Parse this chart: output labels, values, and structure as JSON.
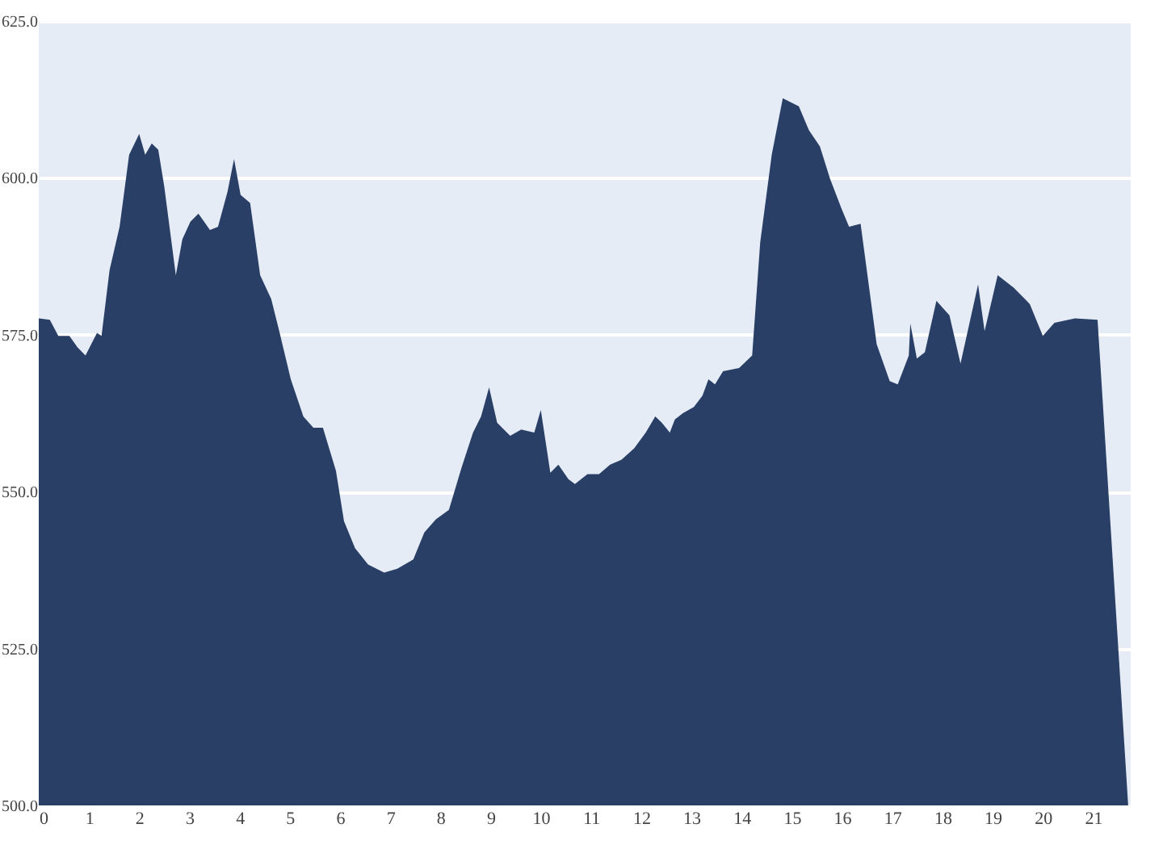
{
  "chart_data": {
    "type": "area",
    "x": [
      0,
      0.22,
      0.39,
      0.61,
      0.77,
      0.93,
      1.16,
      1.25,
      1.41,
      1.61,
      1.8,
      2.0,
      2.12,
      2.25,
      2.38,
      2.5,
      2.73,
      2.86,
      3.02,
      3.18,
      3.41,
      3.57,
      3.76,
      3.89,
      4.02,
      4.21,
      4.41,
      4.63,
      4.79,
      5.02,
      5.27,
      5.47,
      5.66,
      5.92,
      6.08,
      6.3,
      6.56,
      6.88,
      7.14,
      7.46,
      7.68,
      7.91,
      8.17,
      8.42,
      8.65,
      8.81,
      8.97,
      9.13,
      9.39,
      9.61,
      9.87,
      10.0,
      10.19,
      10.35,
      10.55,
      10.68,
      10.93,
      11.16,
      11.38,
      11.61,
      11.86,
      12.09,
      12.28,
      12.41,
      12.57,
      12.67,
      12.83,
      13.05,
      13.22,
      13.34,
      13.47,
      13.63,
      13.95,
      14.21,
      14.37,
      14.6,
      14.82,
      15.14,
      15.34,
      15.56,
      15.76,
      15.98,
      16.14,
      16.37,
      16.69,
      16.95,
      17.11,
      17.33,
      17.36,
      17.49,
      17.65,
      17.88,
      18.14,
      18.36,
      18.71,
      18.84,
      19.1,
      19.42,
      19.74,
      20.0,
      20.23,
      20.64,
      21.09,
      21.7
    ],
    "series": [
      {
        "color": "#2a3f66",
        "values": [
          577.6,
          577.4,
          574.8,
          574.8,
          573,
          571.7,
          575.3,
          574.8,
          585.3,
          592.2,
          603.7,
          607,
          603.7,
          605.5,
          604.5,
          598.6,
          584.5,
          590.2,
          593,
          594.3,
          591.7,
          592.2,
          597.8,
          603,
          597.3,
          596,
          584.5,
          580.7,
          575.6,
          567.9,
          562,
          560.2,
          560.2,
          553.3,
          545.3,
          541,
          538.4,
          537.1,
          537.7,
          539.2,
          543.5,
          545.6,
          547.1,
          553.8,
          559.4,
          562,
          566.6,
          561,
          558.9,
          559.9,
          559.4,
          563,
          553,
          554.3,
          552,
          551.2,
          552.8,
          552.8,
          554.3,
          555.1,
          556.9,
          559.4,
          562,
          561,
          559.4,
          561.5,
          562.5,
          563.5,
          565.3,
          567.9,
          567.1,
          569.2,
          569.7,
          571.7,
          589.7,
          603.7,
          612.7,
          611.4,
          607.6,
          605,
          599.9,
          595.3,
          592.2,
          592.7,
          573.5,
          567.6,
          567.1,
          571.7,
          576.8,
          571.2,
          572.2,
          580.4,
          578.1,
          570.4,
          583,
          575.6,
          584.5,
          582.5,
          579.9,
          574.8,
          576.9,
          577.6,
          577.4,
          500
        ]
      }
    ],
    "xlim": [
      0,
      21.75
    ],
    "xticks": [
      0,
      1,
      2,
      3,
      4,
      5,
      6,
      7,
      8,
      9,
      10,
      11,
      12,
      13,
      14,
      15,
      16,
      17,
      18,
      19,
      20,
      21
    ],
    "ylim": [
      500,
      625
    ],
    "yticks": [
      {
        "value": 500,
        "label": "500.0"
      },
      {
        "value": 525,
        "label": "525.0"
      },
      {
        "value": 550,
        "label": "550.0"
      },
      {
        "value": 575,
        "label": "575.0"
      },
      {
        "value": 600,
        "label": "600.0"
      },
      {
        "value": 625,
        "label": "625.0"
      }
    ],
    "grid": "y"
  }
}
